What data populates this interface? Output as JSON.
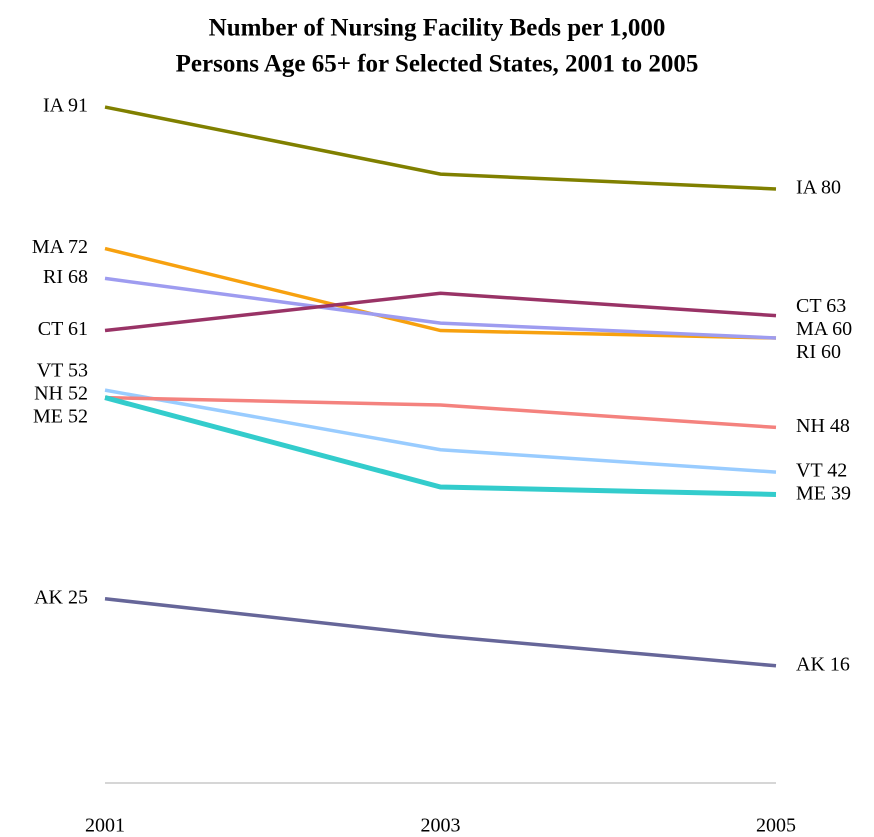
{
  "chart_data": {
    "type": "line",
    "title": [
      "Number of Nursing Facility Beds per 1,000",
      "Persons Age 65+ for Selected States, 2001 to 2005"
    ],
    "categories": [
      "2001",
      "2003",
      "2005"
    ],
    "ylim": [
      0,
      100
    ],
    "series": [
      {
        "name": "IA",
        "color": "#808000",
        "values": [
          91,
          82,
          80
        ],
        "value_labels": [
          "IA 91",
          null,
          "IA 80"
        ]
      },
      {
        "name": "MA",
        "color": "#f7a10f",
        "values": [
          72,
          61,
          60
        ],
        "value_labels": [
          "MA 72",
          null,
          "MA 60"
        ]
      },
      {
        "name": "RI",
        "color": "#9e9cf0",
        "values": [
          68,
          62,
          60
        ],
        "value_labels": [
          "RI 68",
          null,
          "RI 60"
        ]
      },
      {
        "name": "CT",
        "color": "#993366",
        "values": [
          61,
          66,
          63
        ],
        "value_labels": [
          "CT 61",
          null,
          "CT 63"
        ]
      },
      {
        "name": "VT",
        "color": "#99ccff",
        "values": [
          53,
          45,
          42
        ],
        "value_labels": [
          "VT 53",
          null,
          "VT 42"
        ]
      },
      {
        "name": "NH",
        "color": "#f4827e",
        "values": [
          52,
          51,
          48
        ],
        "value_labels": [
          "NH 52",
          null,
          "NH 48"
        ]
      },
      {
        "name": "ME",
        "color": "#33cccc",
        "values": [
          52,
          40,
          39
        ],
        "value_labels": [
          "ME 52",
          null,
          "ME 39"
        ],
        "width": 5
      },
      {
        "name": "AK",
        "color": "#666699",
        "values": [
          25,
          20,
          16
        ],
        "value_labels": [
          "AK 25",
          null,
          "AK 16"
        ]
      }
    ]
  }
}
